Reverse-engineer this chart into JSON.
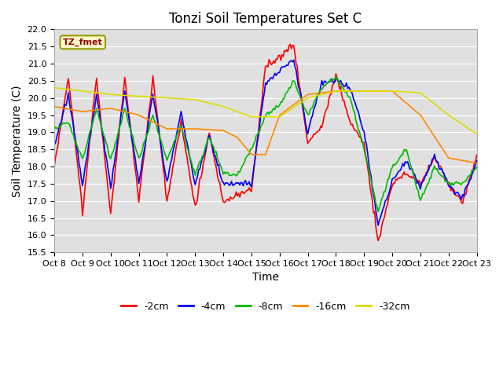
{
  "title": "Tonzi Soil Temperatures Set C",
  "xlabel": "Time",
  "ylabel": "Soil Temperature (C)",
  "ylim": [
    15.5,
    22.0
  ],
  "xlim": [
    0,
    360
  ],
  "yticks": [
    15.5,
    16.0,
    16.5,
    17.0,
    17.5,
    18.0,
    18.5,
    19.0,
    19.5,
    20.0,
    20.5,
    21.0,
    21.5,
    22.0
  ],
  "xtick_labels": [
    "Oct 8",
    "Oct 9",
    "Oct 10",
    "Oct 11",
    "Oct 12",
    "Oct 13",
    "Oct 14",
    "Oct 15",
    "Oct 16",
    "Oct 17",
    "Oct 18",
    "Oct 19",
    "Oct 20",
    "Oct 21",
    "Oct 22",
    "Oct 23"
  ],
  "xtick_positions": [
    0,
    24,
    48,
    72,
    96,
    120,
    144,
    168,
    192,
    216,
    240,
    264,
    288,
    312,
    336,
    360
  ],
  "legend_label": "TZ_fmet",
  "series_labels": [
    "-2cm",
    "-4cm",
    "-8cm",
    "-16cm",
    "-32cm"
  ],
  "series_colors": [
    "#ff0000",
    "#0000ff",
    "#00bb00",
    "#ff8800",
    "#dddd00"
  ],
  "fig_bg_color": "#ffffff",
  "plot_bg_color": "#e0e0e0",
  "title_fontsize": 12,
  "axis_fontsize": 10,
  "tick_fontsize": 8,
  "linewidth": 1.2
}
